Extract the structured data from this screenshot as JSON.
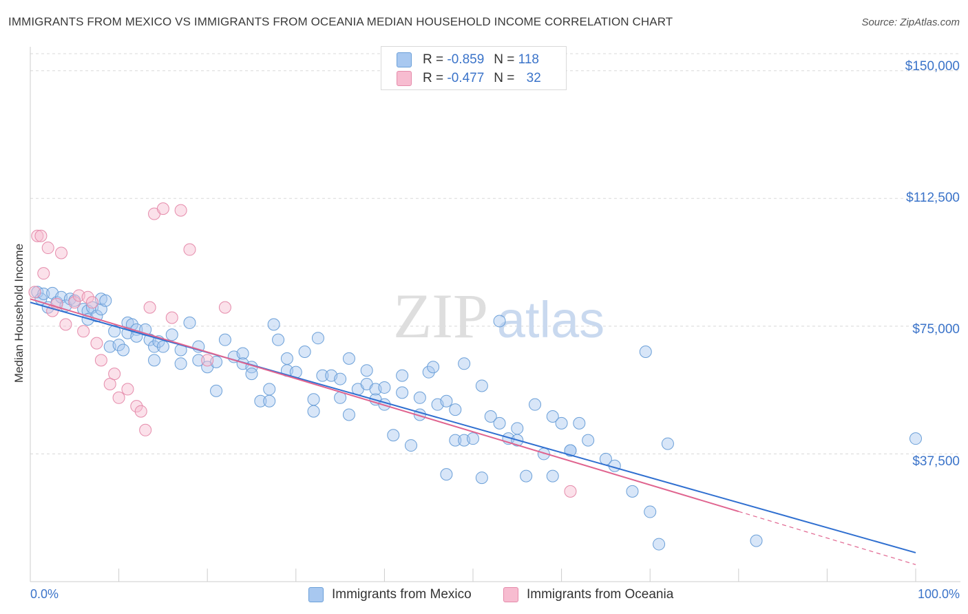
{
  "header": {
    "title": "IMMIGRANTS FROM MEXICO VS IMMIGRANTS FROM OCEANIA MEDIAN HOUSEHOLD INCOME CORRELATION CHART",
    "source": "Source: ZipAtlas.com"
  },
  "watermark": {
    "zip": "ZIP",
    "atlas": "atlas"
  },
  "legend": {
    "r_label": "R =",
    "n_label": "N =",
    "items": [
      {
        "r": "-0.859",
        "n": "118",
        "color": "#a8c8f0",
        "stroke": "#6a9fd8"
      },
      {
        "r": "-0.477",
        "n": "32",
        "color": "#f7bcd0",
        "stroke": "#e58aaa"
      }
    ]
  },
  "colors": {
    "blue_line": "#2f6fd0",
    "pink_line": "#e0648f",
    "axis_text": "#3a73c9"
  },
  "chart_data": {
    "type": "scatter",
    "title": "IMMIGRANTS FROM MEXICO VS IMMIGRANTS FROM OCEANIA MEDIAN HOUSEHOLD INCOME CORRELATION CHART",
    "xlabel": "",
    "ylabel": "Median Household Income",
    "xlim": [
      0,
      100
    ],
    "ylim": [
      0,
      155000
    ],
    "x_tick_labels": {
      "left": "0.0%",
      "right": "100.0%"
    },
    "y_ticks": [
      {
        "value": 37500,
        "label": "$37,500"
      },
      {
        "value": 75000,
        "label": "$75,000"
      },
      {
        "value": 112500,
        "label": "$112,500"
      },
      {
        "value": 150000,
        "label": "$150,000"
      }
    ],
    "grid": "horizontal-dashed",
    "series": [
      {
        "name": "Immigrants from Mexico",
        "color": "#a8c8f0",
        "stroke": "#6a9fd8",
        "trend": {
          "x0": 0,
          "y0": 82000,
          "x1": 100,
          "y1": 8500
        },
        "points": [
          [
            0.8,
            85000
          ],
          [
            1.2,
            83000
          ],
          [
            1.5,
            84500
          ],
          [
            2,
            80500
          ],
          [
            2.5,
            84700
          ],
          [
            3,
            82000
          ],
          [
            3.5,
            83500
          ],
          [
            4,
            81000
          ],
          [
            4.5,
            83000
          ],
          [
            5,
            82500
          ],
          [
            6,
            80000
          ],
          [
            6.5,
            79500
          ],
          [
            6.5,
            77000
          ],
          [
            7,
            80500
          ],
          [
            7.5,
            78000
          ],
          [
            8,
            80000
          ],
          [
            8,
            83000
          ],
          [
            8.5,
            82500
          ],
          [
            9,
            69000
          ],
          [
            9.5,
            73500
          ],
          [
            10,
            69500
          ],
          [
            10.5,
            68000
          ],
          [
            11,
            73000
          ],
          [
            11,
            76000
          ],
          [
            11.5,
            75500
          ],
          [
            12,
            74000
          ],
          [
            12,
            72000
          ],
          [
            13,
            74000
          ],
          [
            13.5,
            71000
          ],
          [
            14,
            69000
          ],
          [
            14,
            65000
          ],
          [
            14.5,
            70500
          ],
          [
            15,
            69000
          ],
          [
            16,
            72500
          ],
          [
            17,
            68000
          ],
          [
            17,
            64000
          ],
          [
            18,
            76000
          ],
          [
            19,
            65000
          ],
          [
            19,
            69000
          ],
          [
            20,
            63000
          ],
          [
            21,
            64500
          ],
          [
            21,
            56000
          ],
          [
            22,
            71000
          ],
          [
            23,
            66000
          ],
          [
            24,
            67000
          ],
          [
            24,
            64000
          ],
          [
            25,
            63000
          ],
          [
            25,
            61000
          ],
          [
            26,
            53000
          ],
          [
            27,
            53000
          ],
          [
            27,
            56500
          ],
          [
            27.5,
            75500
          ],
          [
            28,
            71000
          ],
          [
            29,
            62000
          ],
          [
            29,
            65500
          ],
          [
            30,
            61500
          ],
          [
            31,
            67500
          ],
          [
            32,
            50000
          ],
          [
            32,
            53500
          ],
          [
            32.5,
            71500
          ],
          [
            33,
            60500
          ],
          [
            34,
            60500
          ],
          [
            35,
            54000
          ],
          [
            35,
            59500
          ],
          [
            36,
            49000
          ],
          [
            36,
            65500
          ],
          [
            37,
            56500
          ],
          [
            38,
            62000
          ],
          [
            38,
            58000
          ],
          [
            39,
            53500
          ],
          [
            39,
            56500
          ],
          [
            40,
            57000
          ],
          [
            40,
            52000
          ],
          [
            41,
            43000
          ],
          [
            42,
            60500
          ],
          [
            42,
            55500
          ],
          [
            43,
            40000
          ],
          [
            44,
            49000
          ],
          [
            44,
            54000
          ],
          [
            45,
            61500
          ],
          [
            45.5,
            63000
          ],
          [
            46,
            52000
          ],
          [
            47,
            53000
          ],
          [
            47,
            31500
          ],
          [
            48,
            50500
          ],
          [
            48,
            41500
          ],
          [
            49,
            64000
          ],
          [
            49,
            41500
          ],
          [
            50,
            42000
          ],
          [
            51,
            57500
          ],
          [
            51,
            30500
          ],
          [
            52,
            48500
          ],
          [
            53,
            46500
          ],
          [
            53,
            76500
          ],
          [
            54,
            42000
          ],
          [
            55,
            45000
          ],
          [
            55,
            41500
          ],
          [
            56,
            31000
          ],
          [
            57,
            52000
          ],
          [
            58,
            37500
          ],
          [
            59,
            31000
          ],
          [
            59,
            48500
          ],
          [
            60,
            46500
          ],
          [
            61,
            38500
          ],
          [
            61,
            38500
          ],
          [
            62,
            46500
          ],
          [
            63,
            41500
          ],
          [
            65,
            36000
          ],
          [
            66,
            34000
          ],
          [
            68,
            26500
          ],
          [
            69.5,
            67500
          ],
          [
            70,
            20500
          ],
          [
            71,
            11000
          ],
          [
            72,
            40500
          ],
          [
            82,
            12000
          ],
          [
            100,
            42000
          ]
        ]
      },
      {
        "name": "Immigrants from Oceania",
        "color": "#f7bcd0",
        "stroke": "#e58aaa",
        "trend": {
          "x0": 0,
          "y0": 83000,
          "x1": 100,
          "y1": 5000,
          "solid_until_x": 80
        },
        "points": [
          [
            0.5,
            85000
          ],
          [
            0.8,
            101500
          ],
          [
            1.2,
            101500
          ],
          [
            1.5,
            90500
          ],
          [
            2,
            98000
          ],
          [
            2.5,
            79500
          ],
          [
            3,
            81500
          ],
          [
            3.5,
            96500
          ],
          [
            4,
            75500
          ],
          [
            5,
            82000
          ],
          [
            5.5,
            84000
          ],
          [
            6,
            73500
          ],
          [
            6.5,
            83500
          ],
          [
            7,
            82000
          ],
          [
            7.5,
            70000
          ],
          [
            8,
            65000
          ],
          [
            9,
            58000
          ],
          [
            9.5,
            61000
          ],
          [
            10,
            54000
          ],
          [
            11,
            56500
          ],
          [
            12,
            51500
          ],
          [
            12.5,
            50000
          ],
          [
            13,
            44500
          ],
          [
            13.5,
            80500
          ],
          [
            14,
            108000
          ],
          [
            15,
            109500
          ],
          [
            16,
            77500
          ],
          [
            17,
            109000
          ],
          [
            18,
            97500
          ],
          [
            20,
            65000
          ],
          [
            22,
            80500
          ],
          [
            61,
            26500
          ]
        ]
      }
    ]
  },
  "bottom_legend": {
    "items": [
      {
        "label": "Immigrants from Mexico",
        "color": "#a8c8f0",
        "stroke": "#6a9fd8"
      },
      {
        "label": "Immigrants from Oceania",
        "color": "#f7bcd0",
        "stroke": "#e58aaa"
      }
    ]
  }
}
